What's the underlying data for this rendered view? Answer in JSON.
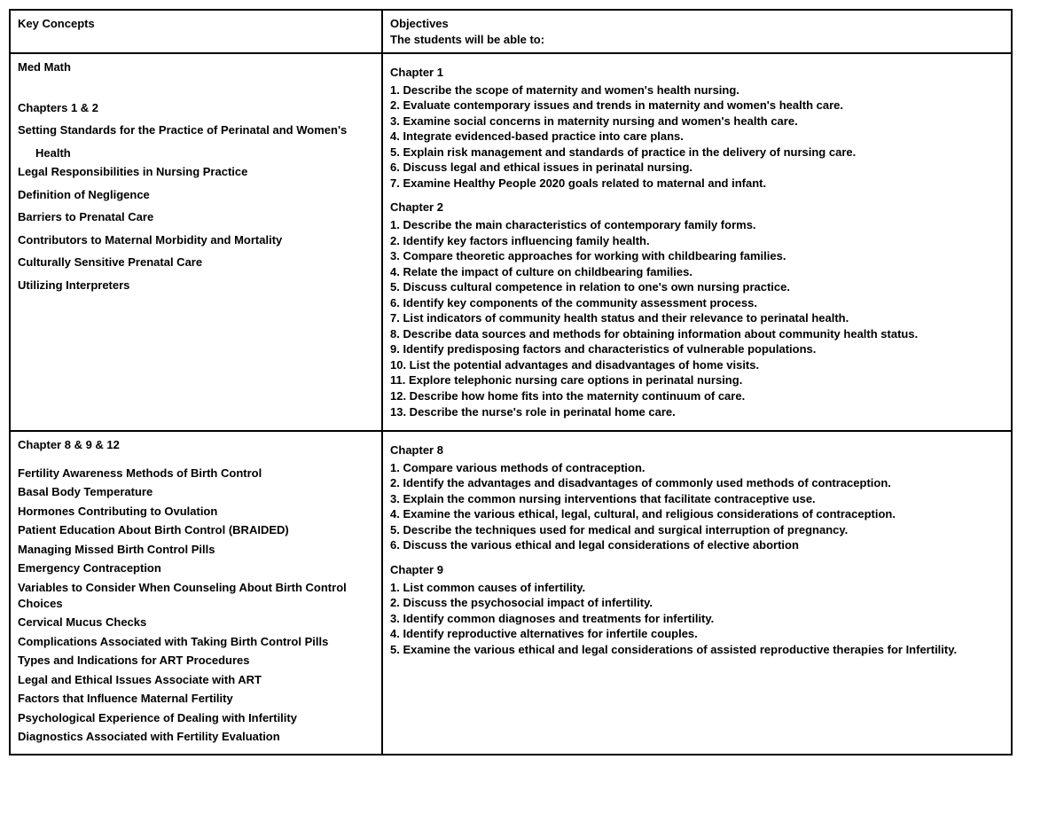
{
  "header": {
    "left": "Key Concepts",
    "right_line1": "Objectives",
    "right_line2": "The students will be able to:"
  },
  "row1": {
    "key_concepts": [
      "Med Math",
      "",
      "",
      "Chapters 1 & 2",
      "Setting Standards for the Practice of Perinatal and Women's",
      "INDENT:Health",
      "Legal Responsibilities in Nursing Practice",
      "Definition of Negligence",
      "Barriers to Prenatal Care",
      "Contributors to Maternal Morbidity and Mortality",
      "Culturally Sensitive Prenatal Care",
      "Utilizing Interpreters"
    ],
    "objectives": [
      {
        "heading": "Chapter 1",
        "items": [
          "Describe the scope of maternity and women's health nursing.",
          "Evaluate contemporary issues and trends in maternity and women's health care.",
          "Examine social concerns in maternity nursing and women's health care.",
          "Integrate evidenced-based practice into care plans.",
          "Explain risk management and standards of practice in the delivery of nursing care.",
          "Discuss legal and ethical issues in perinatal nursing.",
          "Examine Healthy People 2020 goals related to maternal and infant."
        ]
      },
      {
        "heading": "Chapter 2",
        "items": [
          "Describe the main characteristics of contemporary family forms.",
          "Identify key factors influencing family health.",
          "Compare theoretic approaches for working with childbearing families.",
          "Relate the impact of culture on childbearing families.",
          "Discuss cultural competence in relation to one's own nursing practice.",
          "Identify key components of the community assessment process.",
          "List indicators of community health status and their relevance to perinatal health.",
          "Describe data sources and methods for obtaining information about community health status.",
          "Identify predisposing factors and characteristics of vulnerable populations.",
          "List the potential advantages and disadvantages of home visits.",
          "Explore telephonic nursing care options in perinatal nursing.",
          "Describe how home fits into the maternity continuum of care.",
          "Describe the nurse's role in perinatal home care."
        ]
      }
    ]
  },
  "row2": {
    "key_concepts": [
      "Chapter 8 & 9 & 12",
      "",
      "Fertility Awareness Methods of Birth Control",
      "Basal Body Temperature",
      "Hormones Contributing to Ovulation",
      "Patient Education About Birth Control (BRAIDED)",
      "Managing Missed Birth Control Pills",
      "Emergency Contraception",
      "Variables to Consider When Counseling About Birth Control Choices",
      "Cervical Mucus Checks",
      "Complications Associated with Taking Birth Control Pills",
      "Types and Indications for ART Procedures",
      "Legal and Ethical Issues Associate with ART",
      "Factors that Influence Maternal Fertility",
      "Psychological Experience of Dealing with Infertility",
      "Diagnostics Associated with Fertility Evaluation"
    ],
    "objectives": [
      {
        "heading": "Chapter 8",
        "items": [
          "Compare various methods of contraception.",
          "Identify the advantages and disadvantages of commonly used methods of contraception.",
          "Explain the common nursing interventions that facilitate contraceptive use.",
          "Examine the various ethical, legal, cultural, and religious considerations of contraception.",
          "Describe the techniques used for medical and surgical interruption of pregnancy.",
          "Discuss the various ethical and legal considerations of elective abortion"
        ]
      },
      {
        "heading": "Chapter 9",
        "items": [
          "List common causes of infertility.",
          "Discuss the psychosocial impact of infertility.",
          "Identify common diagnoses and treatments for infertility.",
          "Identify reproductive alternatives for infertile couples.",
          "Examine the various ethical and legal considerations of assisted reproductive therapies for Infertility."
        ]
      }
    ]
  }
}
